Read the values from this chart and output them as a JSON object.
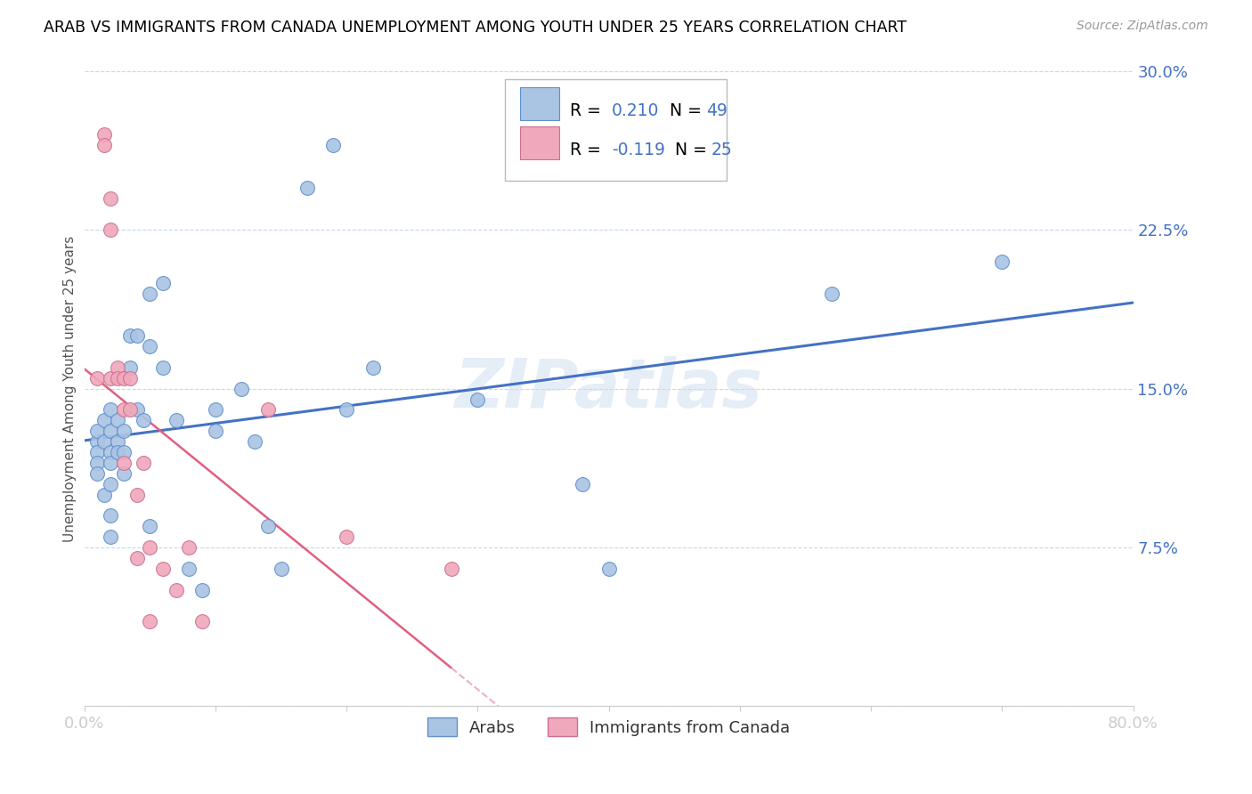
{
  "title": "ARAB VS IMMIGRANTS FROM CANADA UNEMPLOYMENT AMONG YOUTH UNDER 25 YEARS CORRELATION CHART",
  "source": "Source: ZipAtlas.com",
  "ylabel": "Unemployment Among Youth under 25 years",
  "xlim": [
    0.0,
    0.8
  ],
  "ylim": [
    0.0,
    0.3
  ],
  "xticks": [
    0.0,
    0.1,
    0.2,
    0.3,
    0.4,
    0.5,
    0.6,
    0.7,
    0.8
  ],
  "xticklabels": [
    "0.0%",
    "",
    "",
    "",
    "",
    "",
    "",
    "",
    "80.0%"
  ],
  "yticks": [
    0.0,
    0.075,
    0.15,
    0.225,
    0.3
  ],
  "yticklabels_right": [
    "",
    "7.5%",
    "15.0%",
    "22.5%",
    "30.0%"
  ],
  "arab_R": "0.210",
  "arab_N": "49",
  "canada_R": "-0.119",
  "canada_N": "25",
  "arab_color": "#aac4e4",
  "canada_color": "#f0a8bc",
  "arab_edge_color": "#6090cc",
  "canada_edge_color": "#cc7090",
  "arab_line_color": "#4472c4",
  "canada_line_color": "#e06080",
  "canada_dash_color": "#f0b0c0",
  "watermark": "ZIPatlas",
  "arab_x": [
    0.01,
    0.01,
    0.01,
    0.01,
    0.01,
    0.015,
    0.015,
    0.015,
    0.02,
    0.02,
    0.02,
    0.02,
    0.02,
    0.02,
    0.02,
    0.025,
    0.025,
    0.025,
    0.03,
    0.03,
    0.03,
    0.035,
    0.035,
    0.04,
    0.04,
    0.045,
    0.05,
    0.05,
    0.05,
    0.06,
    0.06,
    0.07,
    0.08,
    0.09,
    0.1,
    0.1,
    0.12,
    0.13,
    0.14,
    0.15,
    0.17,
    0.19,
    0.2,
    0.22,
    0.3,
    0.38,
    0.4,
    0.57,
    0.7
  ],
  "arab_y": [
    0.125,
    0.13,
    0.12,
    0.115,
    0.11,
    0.135,
    0.125,
    0.1,
    0.14,
    0.13,
    0.12,
    0.115,
    0.105,
    0.09,
    0.08,
    0.135,
    0.125,
    0.12,
    0.13,
    0.12,
    0.11,
    0.175,
    0.16,
    0.175,
    0.14,
    0.135,
    0.195,
    0.17,
    0.085,
    0.2,
    0.16,
    0.135,
    0.065,
    0.055,
    0.14,
    0.13,
    0.15,
    0.125,
    0.085,
    0.065,
    0.245,
    0.265,
    0.14,
    0.16,
    0.145,
    0.105,
    0.065,
    0.195,
    0.21
  ],
  "canada_x": [
    0.01,
    0.015,
    0.015,
    0.02,
    0.02,
    0.02,
    0.025,
    0.025,
    0.03,
    0.03,
    0.03,
    0.035,
    0.035,
    0.04,
    0.04,
    0.045,
    0.05,
    0.05,
    0.06,
    0.07,
    0.08,
    0.09,
    0.14,
    0.2,
    0.28
  ],
  "canada_y": [
    0.155,
    0.27,
    0.265,
    0.24,
    0.225,
    0.155,
    0.16,
    0.155,
    0.155,
    0.14,
    0.115,
    0.155,
    0.14,
    0.1,
    0.07,
    0.115,
    0.075,
    0.04,
    0.065,
    0.055,
    0.075,
    0.04,
    0.14,
    0.08,
    0.065
  ]
}
